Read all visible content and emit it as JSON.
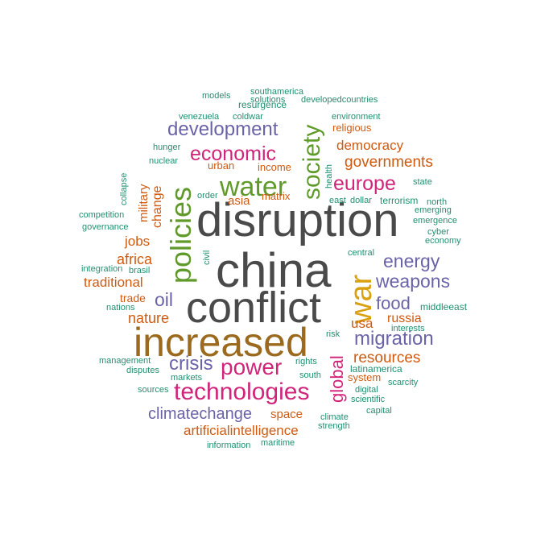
{
  "palette": {
    "gray": "#4a4a4a",
    "brown": "#9b6a1e",
    "gold": "#d9a010",
    "green": "#5f9a2a",
    "magenta": "#d0257a",
    "purple": "#6a63a8",
    "orange": "#cf5a10",
    "teal": "#219072"
  },
  "words": [
    {
      "text": "disruption",
      "color": "gray"
    },
    {
      "text": "china",
      "color": "gray"
    },
    {
      "text": "conflict",
      "color": "gray"
    },
    {
      "text": "increased",
      "color": "brown"
    },
    {
      "text": "war",
      "color": "gold"
    },
    {
      "text": "policies",
      "color": "green"
    },
    {
      "text": "water",
      "color": "green"
    },
    {
      "text": "society",
      "color": "green"
    },
    {
      "text": "technologies",
      "color": "magenta"
    },
    {
      "text": "power",
      "color": "magenta"
    },
    {
      "text": "economic",
      "color": "magenta"
    },
    {
      "text": "europe",
      "color": "magenta"
    },
    {
      "text": "global",
      "color": "magenta"
    },
    {
      "text": "development",
      "color": "purple"
    },
    {
      "text": "migration",
      "color": "purple"
    },
    {
      "text": "energy",
      "color": "purple"
    },
    {
      "text": "weapons",
      "color": "purple"
    },
    {
      "text": "crisis",
      "color": "purple"
    },
    {
      "text": "food",
      "color": "purple"
    },
    {
      "text": "oil",
      "color": "purple"
    },
    {
      "text": "climatechange",
      "color": "purple"
    },
    {
      "text": "governments",
      "color": "orange"
    },
    {
      "text": "democracy",
      "color": "orange"
    },
    {
      "text": "resources",
      "color": "orange"
    },
    {
      "text": "artificialintelligence",
      "color": "orange"
    },
    {
      "text": "traditional",
      "color": "orange"
    },
    {
      "text": "nature",
      "color": "orange"
    },
    {
      "text": "africa",
      "color": "orange"
    },
    {
      "text": "jobs",
      "color": "orange"
    },
    {
      "text": "usa",
      "color": "orange"
    },
    {
      "text": "russia",
      "color": "orange"
    },
    {
      "text": "change",
      "color": "orange"
    },
    {
      "text": "military",
      "color": "orange"
    },
    {
      "text": "asia",
      "color": "orange"
    },
    {
      "text": "religious",
      "color": "orange"
    },
    {
      "text": "space",
      "color": "orange"
    },
    {
      "text": "trade",
      "color": "orange"
    },
    {
      "text": "system",
      "color": "orange"
    },
    {
      "text": "urban",
      "color": "orange"
    },
    {
      "text": "income",
      "color": "orange"
    },
    {
      "text": "matrix",
      "color": "orange"
    },
    {
      "text": "latinamerica",
      "color": "teal"
    },
    {
      "text": "middleeast",
      "color": "teal"
    },
    {
      "text": "terrorism",
      "color": "teal"
    },
    {
      "text": "resurgence",
      "color": "teal"
    },
    {
      "text": "southamerica",
      "color": "teal"
    },
    {
      "text": "solutions",
      "color": "teal"
    },
    {
      "text": "developedcountries",
      "color": "teal"
    },
    {
      "text": "models",
      "color": "teal"
    },
    {
      "text": "coldwar",
      "color": "teal"
    },
    {
      "text": "venezuela",
      "color": "teal"
    },
    {
      "text": "environment",
      "color": "teal"
    },
    {
      "text": "hunger",
      "color": "teal"
    },
    {
      "text": "nuclear",
      "color": "teal"
    },
    {
      "text": "health",
      "color": "teal"
    },
    {
      "text": "state",
      "color": "teal"
    },
    {
      "text": "collapse",
      "color": "teal"
    },
    {
      "text": "order",
      "color": "teal"
    },
    {
      "text": "east",
      "color": "teal"
    },
    {
      "text": "dollar",
      "color": "teal"
    },
    {
      "text": "north",
      "color": "teal"
    },
    {
      "text": "emerging",
      "color": "teal"
    },
    {
      "text": "competition",
      "color": "teal"
    },
    {
      "text": "emergence",
      "color": "teal"
    },
    {
      "text": "governance",
      "color": "teal"
    },
    {
      "text": "cyber",
      "color": "teal"
    },
    {
      "text": "economy",
      "color": "teal"
    },
    {
      "text": "civil",
      "color": "teal"
    },
    {
      "text": "central",
      "color": "teal"
    },
    {
      "text": "integration",
      "color": "teal"
    },
    {
      "text": "brasil",
      "color": "teal"
    },
    {
      "text": "nations",
      "color": "teal"
    },
    {
      "text": "interests",
      "color": "teal"
    },
    {
      "text": "risk",
      "color": "teal"
    },
    {
      "text": "management",
      "color": "teal"
    },
    {
      "text": "rights",
      "color": "teal"
    },
    {
      "text": "disputes",
      "color": "teal"
    },
    {
      "text": "south",
      "color": "teal"
    },
    {
      "text": "markets",
      "color": "teal"
    },
    {
      "text": "scarcity",
      "color": "teal"
    },
    {
      "text": "sources",
      "color": "teal"
    },
    {
      "text": "digital",
      "color": "teal"
    },
    {
      "text": "scientific",
      "color": "teal"
    },
    {
      "text": "capital",
      "color": "teal"
    },
    {
      "text": "climate",
      "color": "teal"
    },
    {
      "text": "strength",
      "color": "teal"
    },
    {
      "text": "information",
      "color": "teal"
    },
    {
      "text": "maritime",
      "color": "teal"
    }
  ]
}
